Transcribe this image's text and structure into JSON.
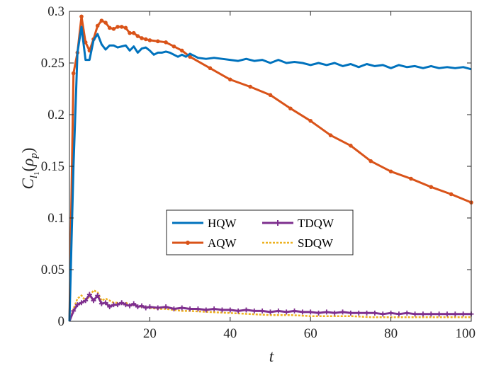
{
  "chart_data": {
    "type": "line",
    "title": "",
    "xlabel": "t",
    "ylabel_main": "C",
    "ylabel_sub": "l",
    "ylabel_subsub": "1",
    "ylabel_arg_open": "(",
    "ylabel_arg": "ρ",
    "ylabel_arg_sub": "p",
    "ylabel_arg_close": ")",
    "xlim": [
      0,
      100
    ],
    "ylim": [
      0,
      0.3
    ],
    "xticks": [
      20,
      40,
      60,
      80,
      100
    ],
    "yticks": [
      0,
      0.05,
      0.1,
      0.15,
      0.2,
      0.25,
      0.3
    ],
    "xtick_labels": [
      "20",
      "40",
      "60",
      "80",
      "100"
    ],
    "ytick_labels": [
      "0",
      "0.05",
      "0.1",
      "0.15",
      "0.2",
      "0.25",
      "0.3"
    ],
    "grid": false,
    "legend_placement": "center",
    "series": [
      {
        "name": "HQW",
        "color": "#0072BD",
        "style": "solid",
        "marker": "none",
        "x": [
          0,
          1,
          2,
          3,
          4,
          5,
          6,
          7,
          8,
          9,
          10,
          11,
          12,
          13,
          14,
          15,
          16,
          17,
          18,
          19,
          20,
          21,
          22,
          23,
          24,
          25,
          26,
          27,
          28,
          29,
          30,
          32,
          34,
          36,
          38,
          40,
          42,
          44,
          46,
          48,
          50,
          52,
          54,
          56,
          58,
          60,
          62,
          64,
          66,
          68,
          70,
          72,
          74,
          76,
          78,
          80,
          82,
          84,
          86,
          88,
          90,
          92,
          94,
          96,
          98,
          100
        ],
        "y": [
          0,
          0.15,
          0.26,
          0.285,
          0.253,
          0.253,
          0.272,
          0.278,
          0.268,
          0.263,
          0.267,
          0.267,
          0.265,
          0.266,
          0.267,
          0.262,
          0.266,
          0.26,
          0.264,
          0.265,
          0.262,
          0.258,
          0.26,
          0.26,
          0.261,
          0.26,
          0.258,
          0.256,
          0.258,
          0.256,
          0.259,
          0.255,
          0.254,
          0.255,
          0.254,
          0.253,
          0.252,
          0.254,
          0.252,
          0.253,
          0.25,
          0.253,
          0.25,
          0.251,
          0.25,
          0.248,
          0.25,
          0.248,
          0.25,
          0.247,
          0.249,
          0.246,
          0.249,
          0.247,
          0.248,
          0.245,
          0.248,
          0.246,
          0.247,
          0.245,
          0.247,
          0.245,
          0.246,
          0.245,
          0.246,
          0.244
        ]
      },
      {
        "name": "AQW",
        "color": "#D95319",
        "style": "solid",
        "marker": "dot",
        "x": [
          0,
          1,
          2,
          3,
          4,
          5,
          6,
          7,
          8,
          9,
          10,
          11,
          12,
          13,
          14,
          15,
          16,
          17,
          18,
          19,
          20,
          22,
          24,
          26,
          28,
          30,
          35,
          40,
          45,
          50,
          55,
          60,
          65,
          70,
          75,
          80,
          85,
          90,
          95,
          100
        ],
        "y": [
          0,
          0.24,
          0.26,
          0.295,
          0.27,
          0.262,
          0.273,
          0.286,
          0.291,
          0.289,
          0.284,
          0.283,
          0.285,
          0.285,
          0.284,
          0.279,
          0.279,
          0.276,
          0.274,
          0.273,
          0.272,
          0.271,
          0.27,
          0.266,
          0.262,
          0.256,
          0.245,
          0.234,
          0.227,
          0.219,
          0.206,
          0.194,
          0.18,
          0.17,
          0.155,
          0.145,
          0.138,
          0.13,
          0.123,
          0.115
        ]
      },
      {
        "name": "TDQW",
        "color": "#7E2F8E",
        "style": "solid",
        "marker": "plus",
        "x": [
          0,
          1,
          2,
          3,
          4,
          5,
          6,
          7,
          8,
          9,
          10,
          11,
          12,
          13,
          14,
          15,
          16,
          17,
          18,
          19,
          20,
          22,
          24,
          26,
          28,
          30,
          32,
          34,
          36,
          38,
          40,
          42,
          44,
          46,
          48,
          50,
          52,
          54,
          56,
          58,
          60,
          62,
          64,
          66,
          68,
          70,
          72,
          74,
          76,
          78,
          80,
          82,
          84,
          86,
          88,
          90,
          92,
          94,
          96,
          98,
          100
        ],
        "y": [
          0,
          0.01,
          0.016,
          0.018,
          0.02,
          0.026,
          0.02,
          0.025,
          0.017,
          0.018,
          0.014,
          0.016,
          0.016,
          0.018,
          0.016,
          0.015,
          0.017,
          0.014,
          0.015,
          0.013,
          0.014,
          0.013,
          0.014,
          0.012,
          0.013,
          0.012,
          0.012,
          0.011,
          0.012,
          0.011,
          0.011,
          0.01,
          0.011,
          0.01,
          0.01,
          0.009,
          0.01,
          0.009,
          0.01,
          0.009,
          0.009,
          0.008,
          0.009,
          0.008,
          0.009,
          0.008,
          0.008,
          0.008,
          0.008,
          0.007,
          0.008,
          0.007,
          0.008,
          0.007,
          0.007,
          0.007,
          0.007,
          0.007,
          0.007,
          0.007,
          0.007
        ]
      },
      {
        "name": "SDQW",
        "color": "#EDB120",
        "style": "dotted",
        "marker": "none",
        "x": [
          0,
          1,
          2,
          3,
          4,
          5,
          6,
          7,
          8,
          9,
          10,
          11,
          12,
          13,
          14,
          15,
          16,
          17,
          18,
          19,
          20,
          22,
          24,
          26,
          28,
          30,
          35,
          40,
          45,
          50,
          55,
          60,
          65,
          70,
          75,
          80,
          85,
          90,
          95,
          100
        ],
        "y": [
          0,
          0.012,
          0.022,
          0.025,
          0.02,
          0.024,
          0.03,
          0.028,
          0.02,
          0.022,
          0.02,
          0.018,
          0.018,
          0.017,
          0.018,
          0.016,
          0.016,
          0.015,
          0.014,
          0.014,
          0.013,
          0.012,
          0.012,
          0.011,
          0.01,
          0.01,
          0.009,
          0.008,
          0.007,
          0.006,
          0.006,
          0.005,
          0.005,
          0.005,
          0.004,
          0.004,
          0.004,
          0.004,
          0.004,
          0.004
        ]
      }
    ]
  }
}
